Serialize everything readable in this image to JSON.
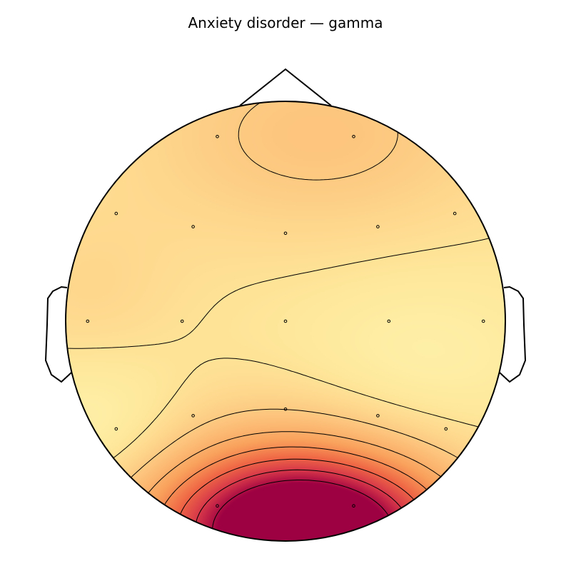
{
  "chart_data": {
    "type": "heatmap",
    "title": "Anxiety disorder — gamma",
    "xlabel": "",
    "ylabel": "",
    "colormap": "spectral-warm",
    "color_stops": [
      "#fefbb9",
      "#fee79a",
      "#fdc47d",
      "#f9a15c",
      "#f06a46",
      "#d63649",
      "#9e0142"
    ],
    "grid": false,
    "legend": "none",
    "electrodes": [
      {
        "x": -0.31,
        "y": 0.84
      },
      {
        "x": 0.31,
        "y": 0.84
      },
      {
        "x": -0.77,
        "y": 0.49
      },
      {
        "x": -0.42,
        "y": 0.43
      },
      {
        "x": 0.0,
        "y": 0.4
      },
      {
        "x": 0.42,
        "y": 0.43
      },
      {
        "x": 0.77,
        "y": 0.49
      },
      {
        "x": -0.9,
        "y": 0.0
      },
      {
        "x": -0.47,
        "y": 0.0
      },
      {
        "x": 0.0,
        "y": 0.0
      },
      {
        "x": 0.47,
        "y": 0.0
      },
      {
        "x": 0.9,
        "y": 0.0
      },
      {
        "x": -0.77,
        "y": -0.49
      },
      {
        "x": -0.42,
        "y": -0.43
      },
      {
        "x": 0.0,
        "y": -0.4
      },
      {
        "x": 0.42,
        "y": -0.43
      },
      {
        "x": 0.73,
        "y": -0.49
      },
      {
        "x": -0.31,
        "y": -0.84
      },
      {
        "x": 0.31,
        "y": -0.84
      }
    ],
    "field_blobs": [
      {
        "x": 0.1,
        "y": -0.98,
        "amplitude": 1.0,
        "sigma_x": 0.4,
        "sigma_y": 0.22
      },
      {
        "x": 0.0,
        "y": -0.85,
        "amplitude": 0.45,
        "sigma_x": 0.55,
        "sigma_y": 0.3
      },
      {
        "x": 0.15,
        "y": 0.85,
        "amplitude": 0.18,
        "sigma_x": 0.6,
        "sigma_y": 0.35
      },
      {
        "x": -0.9,
        "y": 0.1,
        "amplitude": 0.08,
        "sigma_x": 0.3,
        "sigma_y": 0.3
      },
      {
        "x": -0.85,
        "y": -0.5,
        "amplitude": -0.15,
        "sigma_x": 0.3,
        "sigma_y": 0.25
      },
      {
        "x": 0.6,
        "y": -0.2,
        "amplitude": -0.1,
        "sigma_x": 0.4,
        "sigma_y": 0.3
      }
    ],
    "field_baseline": 0.3,
    "contour_levels": [
      0.18,
      0.32,
      0.45,
      0.6,
      0.75,
      0.9,
      1.05,
      1.2
    ]
  }
}
